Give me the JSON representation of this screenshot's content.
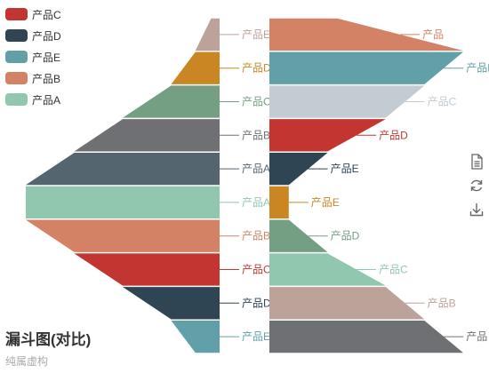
{
  "title": {
    "text": "漏斗图(对比)",
    "subtext": "纯属虚构"
  },
  "legend": {
    "items": [
      {
        "label": "产品C",
        "color": "#c23531"
      },
      {
        "label": "产品D",
        "color": "#2f4554"
      },
      {
        "label": "产品E",
        "color": "#61a0a8"
      },
      {
        "label": "产品B",
        "color": "#d48265"
      },
      {
        "label": "产品A",
        "color": "#91c7ae"
      }
    ]
  },
  "toolbox": {
    "icons": [
      "save-as-image-icon",
      "restore-icon",
      "download-icon"
    ]
  },
  "chart_data": [
    {
      "type": "funnel",
      "orientation": "left",
      "name": "",
      "items": [
        {
          "name": "产品E",
          "value": 10,
          "color": "#bda29a"
        },
        {
          "name": "产品D",
          "value": 20,
          "color": "#ca8622"
        },
        {
          "name": "产品C",
          "value": 40,
          "color": "#749f83"
        },
        {
          "name": "产品B",
          "value": 60,
          "color": "#6e7074"
        },
        {
          "name": "产品A",
          "value": 80,
          "color": "#546570"
        },
        {
          "name": "产品A",
          "value": 80,
          "color": "#91c7ae"
        },
        {
          "name": "产品B",
          "value": 60,
          "color": "#d48265"
        },
        {
          "name": "产品C",
          "value": 40,
          "color": "#c23531"
        },
        {
          "name": "产品D",
          "value": 20,
          "color": "#2f4554"
        },
        {
          "name": "产品E",
          "value": 10,
          "color": "#61a0a8"
        }
      ]
    },
    {
      "type": "funnel",
      "orientation": "right",
      "name": "",
      "items": [
        {
          "name": "产品",
          "value": 100,
          "color": "#d48265"
        },
        {
          "name": "产品B",
          "value": 80,
          "color": "#61a0a8"
        },
        {
          "name": "产品C",
          "value": 60,
          "color": "#c4ccd3"
        },
        {
          "name": "产品D",
          "value": 30,
          "color": "#c23531"
        },
        {
          "name": "产品E",
          "value": 10,
          "color": "#2f4554"
        },
        {
          "name": "产品E",
          "value": 10,
          "color": "#ca8622"
        },
        {
          "name": "产品D",
          "value": 30,
          "color": "#749f83"
        },
        {
          "name": "产品C",
          "value": 60,
          "color": "#91c7ae"
        },
        {
          "name": "产品B",
          "value": 80,
          "color": "#bda29a"
        },
        {
          "name": "产品",
          "value": 100,
          "color": "#6e7074"
        }
      ]
    }
  ]
}
